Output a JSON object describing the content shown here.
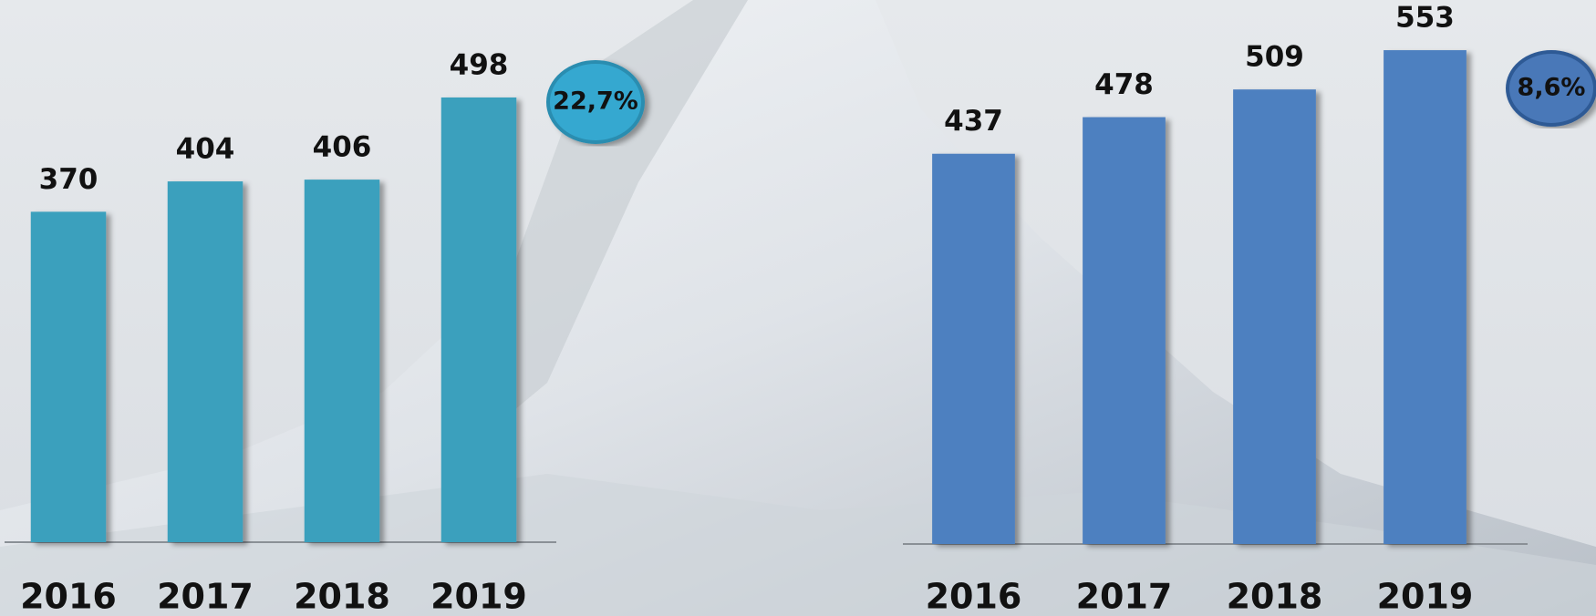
{
  "chart_data": [
    {
      "type": "bar",
      "categories": [
        "2016",
        "2017",
        "2018",
        "2019"
      ],
      "values": [
        370,
        404,
        406,
        498
      ],
      "color": "#3aa0bd",
      "annotation": "22,7%"
    },
    {
      "type": "bar",
      "categories": [
        "2016",
        "2017",
        "2018",
        "2019"
      ],
      "values": [
        437,
        478,
        509,
        553
      ],
      "color": "#4e80c0",
      "annotation": "8,6%"
    }
  ]
}
